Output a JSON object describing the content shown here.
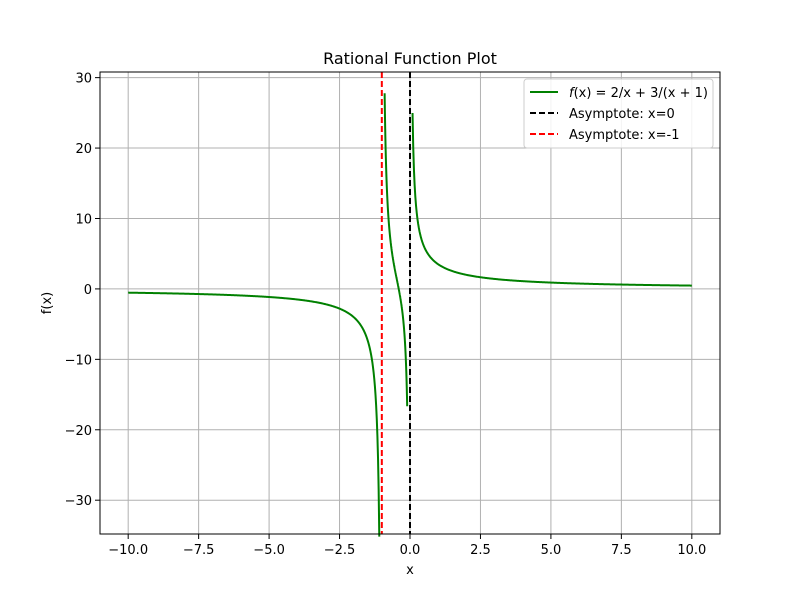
{
  "chart_data": {
    "type": "line",
    "title": "Rational Function Plot",
    "xlabel": "x",
    "ylabel": "f(x)",
    "xlim": [
      -11,
      11
    ],
    "ylim": [
      -34.8,
      30.8
    ],
    "grid": true,
    "x_ticks": [
      -10.0,
      -7.5,
      -5.0,
      -2.5,
      0.0,
      2.5,
      5.0,
      7.5,
      10.0
    ],
    "x_tick_labels": [
      "−10.0",
      "−7.5",
      "−5.0",
      "−2.5",
      "0.0",
      "2.5",
      "5.0",
      "7.5",
      "10.0"
    ],
    "y_ticks": [
      -30,
      -20,
      -10,
      0,
      10,
      20,
      30
    ],
    "y_tick_labels": [
      "−30",
      "−20",
      "−10",
      "0",
      "10",
      "20",
      "30"
    ],
    "legend_position": "top-right",
    "series": [
      {
        "name": "f(x) = 2/x + 3/(x + 1)",
        "kind": "function",
        "color": "#008000",
        "style": "solid",
        "segments": [
          {
            "x": [
              -10,
              -1.09
            ],
            "y": [
              -0.533,
              -31.9
            ]
          },
          {
            "x": [
              -0.9,
              -0.1
            ],
            "y": [
              27.8,
              -16.7
            ]
          },
          {
            "x": [
              0.09,
              10
            ],
            "y": [
              22.98,
              0.473
            ]
          }
        ]
      },
      {
        "name": "Asymptote: x=0",
        "kind": "vline",
        "x": 0,
        "color": "#000000",
        "style": "dashed"
      },
      {
        "name": "Asymptote: x=-1",
        "kind": "vline",
        "x": -1,
        "color": "#ff0000",
        "style": "dashed"
      }
    ]
  },
  "legend": {
    "items": [
      {
        "prefix": "f",
        "math": "(x) = 2/x + 3/(x + 1)"
      },
      {
        "label": "Asymptote: x=0"
      },
      {
        "label": "Asymptote: x=-1"
      }
    ]
  }
}
